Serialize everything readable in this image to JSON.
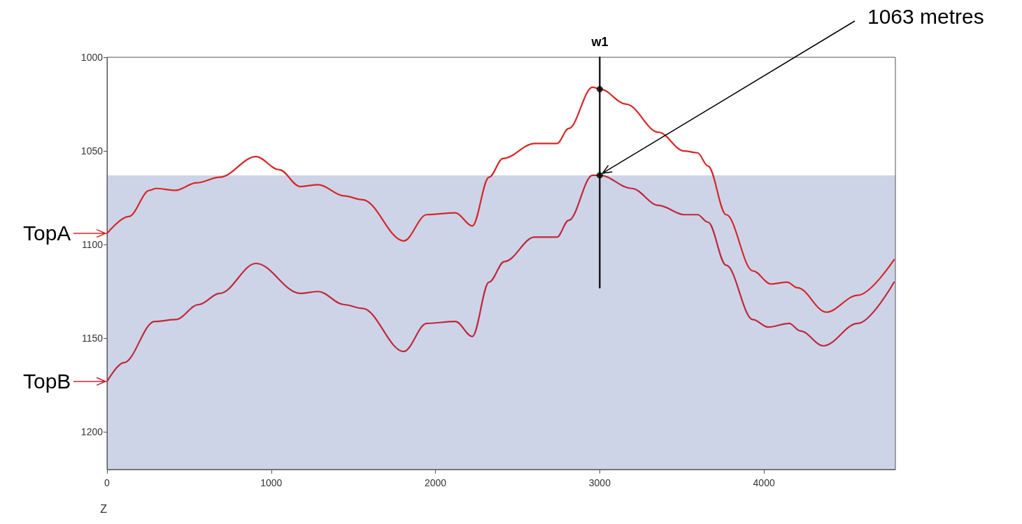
{
  "chart_data": {
    "type": "line",
    "xlabel": "Z",
    "xlim": [
      0,
      4800
    ],
    "xticks": [
      0,
      1000,
      2000,
      3000,
      4000
    ],
    "ylim": [
      1220,
      1000
    ],
    "yticks": [
      1000,
      1050,
      1100,
      1150,
      1200
    ],
    "grid": false,
    "legend": "left",
    "marker": "none",
    "line_style": "solid",
    "series": [
      {
        "name": "TopA",
        "color": "#d62728",
        "x": [
          0,
          132,
          260,
          298,
          417,
          545,
          686,
          907,
          1048,
          1176,
          1286,
          1444,
          1555,
          1806,
          1947,
          2121,
          2224,
          2326,
          2411,
          2603,
          2739,
          2811,
          2956,
          3003,
          3161,
          3357,
          3514,
          3595,
          3659,
          3770,
          3932,
          4043,
          4141,
          4204,
          4379,
          4571,
          4792
        ],
        "values": [
          1094,
          1085,
          1071,
          1070,
          1071,
          1067,
          1064,
          1053,
          1060,
          1069,
          1068,
          1074,
          1076,
          1098,
          1084,
          1083,
          1090,
          1064,
          1054,
          1046,
          1046,
          1038,
          1016,
          1017,
          1025,
          1040,
          1050,
          1051,
          1058,
          1084,
          1114,
          1121,
          1120,
          1123,
          1136,
          1127,
          1108
        ]
      },
      {
        "name": "TopB",
        "color": "#c0283a",
        "x": [
          0,
          102,
          290,
          417,
          558,
          686,
          907,
          1176,
          1286,
          1444,
          1555,
          1806,
          1947,
          2121,
          2224,
          2326,
          2420,
          2603,
          2739,
          2811,
          2956,
          3003,
          3195,
          3357,
          3514,
          3595,
          3659,
          3770,
          3932,
          4026,
          4153,
          4221,
          4362,
          4571,
          4792
        ],
        "values": [
          1173,
          1163,
          1141,
          1140,
          1132,
          1126,
          1110,
          1126,
          1125,
          1132,
          1134,
          1157,
          1142,
          1141,
          1149,
          1120,
          1109,
          1096,
          1096,
          1087,
          1063,
          1063,
          1070,
          1079,
          1084,
          1084,
          1088,
          1111,
          1140,
          1144,
          1142,
          1146,
          1154,
          1142,
          1120
        ]
      },
      {
        "name": "w1",
        "color": "#000000",
        "x": [
          3000,
          3000
        ],
        "values": [
          1000,
          1123
        ]
      },
      {
        "type": "scatter",
        "marker": "circle",
        "color": "#000000",
        "x": [
          3000,
          3000
        ],
        "values": [
          1017,
          1063
        ]
      }
    ],
    "bands": [
      {
        "axis": "y",
        "from": 1063,
        "to": 1220,
        "color": "#cdd4e8"
      }
    ],
    "annotations": [
      {
        "text": "1063 metres",
        "x": 3000,
        "y": 1063
      }
    ]
  }
}
